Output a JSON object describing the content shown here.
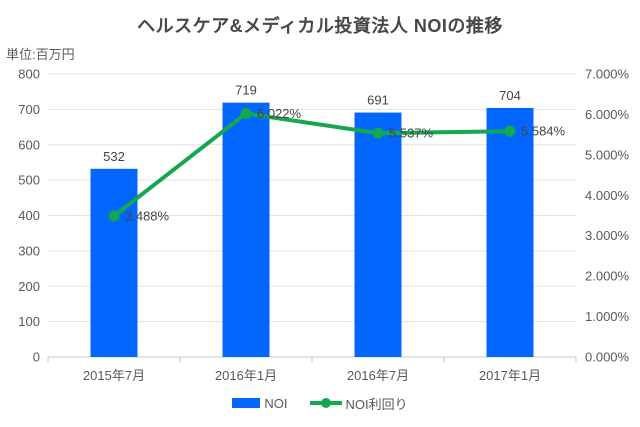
{
  "title": "ヘルスケア&メディカル投資法人 NOIの推移",
  "unit_label": "単位:百万円",
  "legend": [
    {
      "label": "NOI",
      "type": "bar",
      "color": "#0467fd"
    },
    {
      "label": "NOI利回り",
      "type": "line",
      "color": "#13a750"
    }
  ],
  "chart_data": {
    "type": "combo",
    "title": "ヘルスケア&メディカル投資法人 NOIの推移",
    "unit": "単位:百万円",
    "categories": [
      "2015年7月",
      "2016年1月",
      "2016年7月",
      "2017年1月"
    ],
    "series": [
      {
        "name": "NOI",
        "type": "bar",
        "axis": "left",
        "color": "#0467fd",
        "values": [
          532,
          719,
          691,
          704
        ],
        "labels": [
          "532",
          "719",
          "691",
          "704"
        ]
      },
      {
        "name": "NOI利回り",
        "type": "line",
        "axis": "right",
        "color": "#13a750",
        "values": [
          3.488,
          6.022,
          5.537,
          5.584
        ],
        "labels": [
          "3.488%",
          "6.022%",
          "5.537%",
          "5.584%"
        ]
      }
    ],
    "left_axis": {
      "min": 0,
      "max": 800,
      "step": 100,
      "ticks": [
        "0",
        "100",
        "200",
        "300",
        "400",
        "500",
        "600",
        "700",
        "800"
      ]
    },
    "right_axis": {
      "min": 0,
      "max": 7,
      "step": 1,
      "ticks": [
        "0.000%",
        "1.000%",
        "2.000%",
        "3.000%",
        "4.000%",
        "5.000%",
        "6.000%",
        "7.000%"
      ]
    },
    "grid": true,
    "legend_position": "bottom",
    "colors": {
      "grid": "#e3e3e3",
      "axis_line": "#c9c9c9",
      "tick": "#c0c0c0",
      "axis_text": "#595959",
      "label_text": "#444444"
    }
  }
}
